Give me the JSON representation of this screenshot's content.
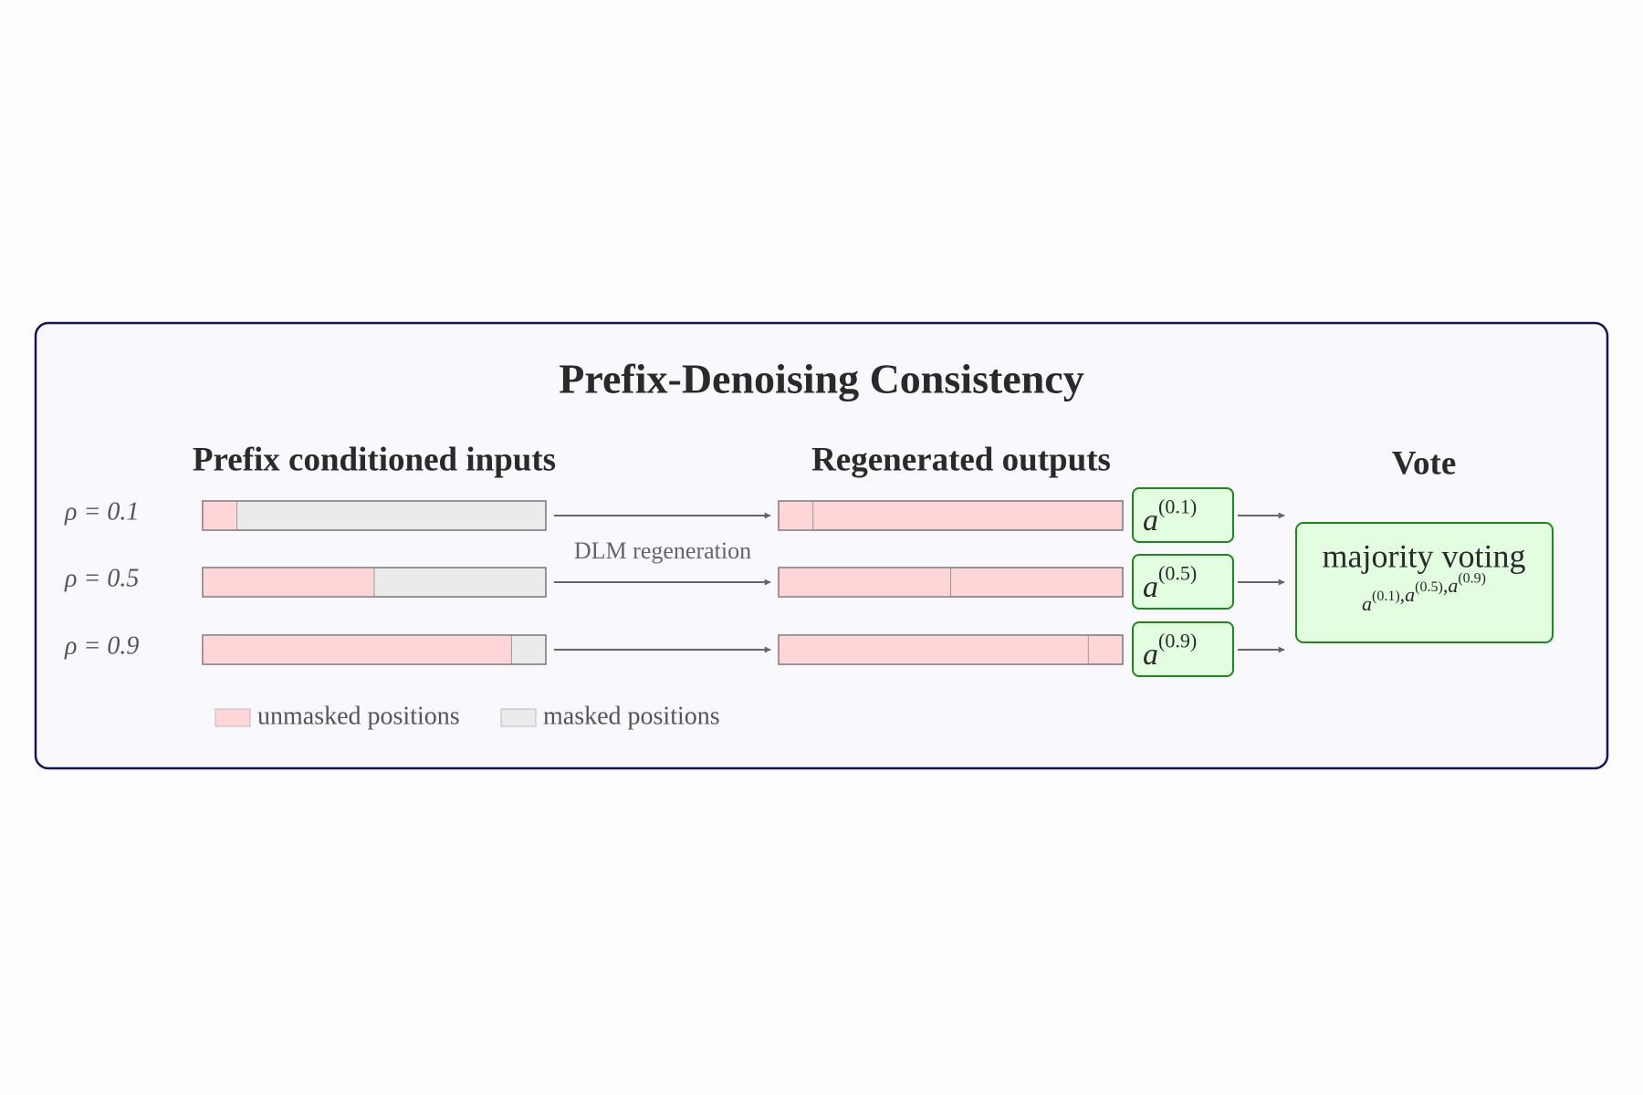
{
  "title": "Prefix-Denoising Consistency",
  "columns": {
    "inputs": "Prefix conditioned inputs",
    "outputs": "Regenerated outputs",
    "vote": "Vote"
  },
  "arrow_label": "DLM regeneration",
  "rows": [
    {
      "label": "ρ = 0.1",
      "unmasked_fraction": 0.1,
      "answer": {
        "base": "a",
        "sup": "(0.1)"
      }
    },
    {
      "label": "ρ = 0.5",
      "unmasked_fraction": 0.5,
      "answer": {
        "base": "a",
        "sup": "(0.5)"
      }
    },
    {
      "label": "ρ = 0.9",
      "unmasked_fraction": 0.9,
      "answer": {
        "base": "a",
        "sup": "(0.9)"
      }
    }
  ],
  "vote_box": {
    "title": "majority voting",
    "separator": ",",
    "items": [
      {
        "base": "a",
        "sup": "(0.1)"
      },
      {
        "base": "a",
        "sup": "(0.5)"
      },
      {
        "base": "a",
        "sup": "(0.9)"
      }
    ]
  },
  "legend": {
    "unmasked": "unmasked positions",
    "masked": "masked positions"
  },
  "colors": {
    "unmasked": "#ffd6d8",
    "masked": "#ebebeb",
    "answer_fill": "#e2fde0",
    "answer_stroke": "#1a8a1a"
  }
}
